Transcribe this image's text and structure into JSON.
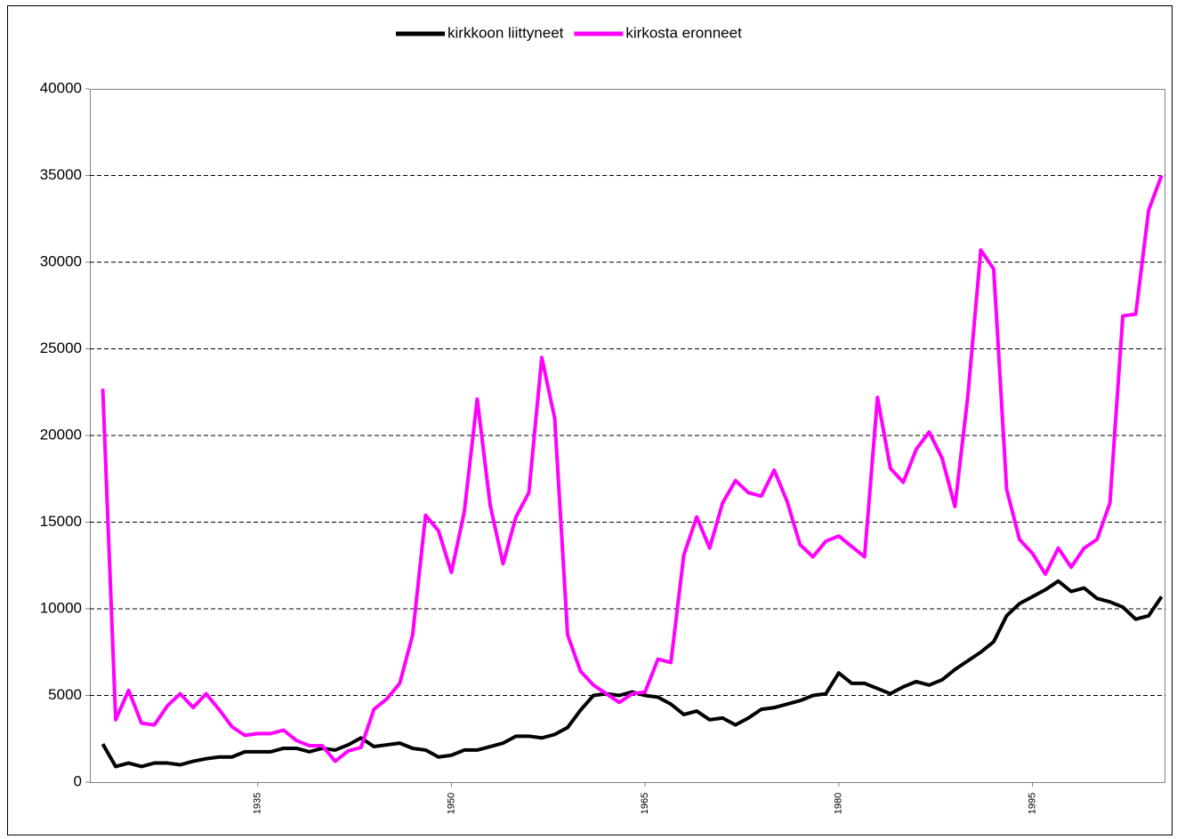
{
  "chart_data": {
    "type": "line",
    "x": [
      1923,
      1924,
      1925,
      1926,
      1927,
      1928,
      1929,
      1930,
      1931,
      1932,
      1933,
      1934,
      1935,
      1936,
      1937,
      1938,
      1939,
      1940,
      1941,
      1942,
      1943,
      1944,
      1945,
      1946,
      1947,
      1948,
      1949,
      1950,
      1951,
      1952,
      1953,
      1954,
      1955,
      1956,
      1957,
      1958,
      1959,
      1960,
      1961,
      1962,
      1963,
      1964,
      1965,
      1966,
      1967,
      1968,
      1969,
      1970,
      1971,
      1972,
      1973,
      1974,
      1975,
      1976,
      1977,
      1978,
      1979,
      1980,
      1981,
      1982,
      1983,
      1984,
      1985,
      1986,
      1987,
      1988,
      1989,
      1990,
      1991,
      1992,
      1993,
      1994,
      1995,
      1996,
      1997,
      1998,
      1999,
      2000,
      2001,
      2002,
      2003,
      2004,
      2005
    ],
    "series": [
      {
        "name": "kirkkoon liittyneet",
        "color": "#000000",
        "values": [
          2200,
          900,
          1100,
          900,
          1100,
          1100,
          1000,
          1200,
          1350,
          1450,
          1450,
          1750,
          1750,
          1750,
          1950,
          1950,
          1750,
          1950,
          1850,
          2150,
          2550,
          2050,
          2150,
          2250,
          1950,
          1850,
          1450,
          1550,
          1850,
          1850,
          2050,
          2250,
          2650,
          2650,
          2550,
          2750,
          3150,
          4150,
          5000,
          5100,
          5000,
          5200,
          5000,
          4900,
          4500,
          3900,
          4100,
          3600,
          3700,
          3300,
          3700,
          4200,
          4300,
          4500,
          4700,
          5000,
          5100,
          6300,
          5700,
          5700,
          5400,
          5100,
          5500,
          5800,
          5600,
          5900,
          6500,
          7000,
          7500,
          8100,
          9600,
          10300,
          10700,
          11100,
          11600,
          11000,
          11200,
          10600,
          10400,
          10100,
          9400,
          9600,
          10700
        ]
      },
      {
        "name": "kirkosta eronneet",
        "color": "#ff00ff",
        "values": [
          22700,
          3600,
          5300,
          3400,
          3300,
          4400,
          5100,
          4300,
          5100,
          4200,
          3200,
          2700,
          2800,
          2800,
          3000,
          2400,
          2100,
          2100,
          1200,
          1800,
          2000,
          4200,
          4800,
          5700,
          8500,
          15400,
          14500,
          12100,
          15600,
          22100,
          16000,
          12600,
          15300,
          16700,
          24500,
          21000,
          8500,
          6400,
          5600,
          5100,
          4600,
          5100,
          5200,
          7100,
          6900,
          13100,
          15300,
          13500,
          16100,
          17400,
          16700,
          16500,
          18000,
          16200,
          13700,
          13000,
          13900,
          14200,
          13600,
          13000,
          22200,
          18100,
          17300,
          19200,
          20200,
          18700,
          15900,
          22300,
          30700,
          29600,
          16900,
          14000,
          13200,
          12000,
          13500,
          12400,
          13500,
          14000,
          16100,
          26900,
          27000,
          33000,
          35000
        ]
      }
    ],
    "xlim": [
      1922,
      2005.3
    ],
    "xticks": [
      1935,
      1950,
      1965,
      1980,
      1995
    ],
    "ylim": [
      0,
      40000
    ],
    "yticks": [
      0,
      5000,
      10000,
      15000,
      20000,
      25000,
      30000,
      35000,
      40000
    ],
    "grid": true,
    "legend": "top"
  }
}
